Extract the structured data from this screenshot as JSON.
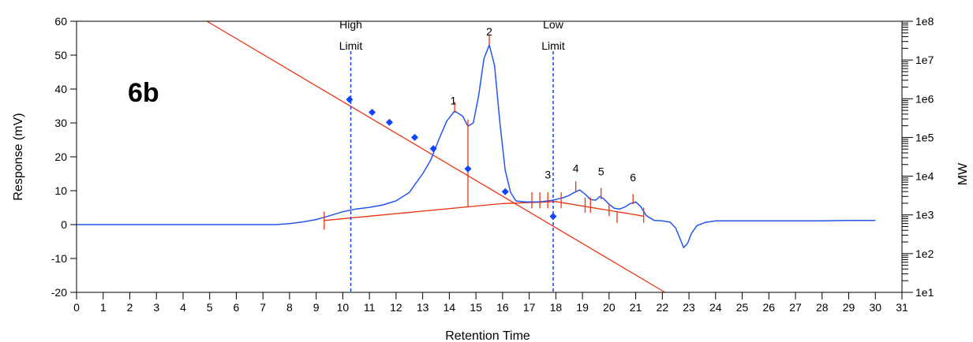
{
  "chart_data": {
    "type": "line",
    "panel_label": "6b",
    "title": "",
    "xlabel": "Retention Time",
    "ylabel_left": "Response (mV)",
    "ylabel_right": "MW",
    "xlim": [
      0,
      31
    ],
    "ylim_left": [
      -20,
      60
    ],
    "ylim_right_log10": [
      1,
      8
    ],
    "x_ticks": [
      0,
      1,
      2,
      3,
      4,
      5,
      6,
      7,
      8,
      9,
      10,
      11,
      12,
      13,
      14,
      15,
      16,
      17,
      18,
      19,
      20,
      21,
      22,
      23,
      24,
      25,
      26,
      27,
      28,
      29,
      30,
      31
    ],
    "y_ticks_left": [
      -20,
      -10,
      0,
      10,
      20,
      30,
      40,
      50,
      60
    ],
    "y_ticks_right": [
      {
        "label": "1e1",
        "log10": 1
      },
      {
        "label": "1e2",
        "log10": 2
      },
      {
        "label": "1e3",
        "log10": 3
      },
      {
        "label": "1e4",
        "log10": 4
      },
      {
        "label": "1e5",
        "log10": 5
      },
      {
        "label": "1e6",
        "log10": 6
      },
      {
        "label": "1e7",
        "log10": 7
      },
      {
        "label": "1e8",
        "log10": 8
      }
    ],
    "grid": false,
    "colors": {
      "signal": "#2255ee",
      "calibration": "#ee3311",
      "markers": "#1144ff",
      "limits": "#1144ee",
      "axes": "#000000"
    },
    "limits": [
      {
        "label_line1": "High",
        "label_line2": "Limit",
        "x": 10.3
      },
      {
        "label_line1": "Low",
        "label_line2": "Limit",
        "x": 17.9
      }
    ],
    "signal": {
      "x": [
        0,
        7.5,
        8.0,
        8.5,
        9.0,
        9.5,
        10.0,
        10.5,
        11.0,
        11.5,
        12.0,
        12.5,
        13.0,
        13.3,
        13.6,
        13.9,
        14.2,
        14.5,
        14.7,
        14.9,
        15.1,
        15.3,
        15.5,
        15.7,
        15.9,
        16.1,
        16.3,
        16.5,
        16.7,
        16.9,
        17.1,
        17.3,
        17.5,
        17.7,
        17.9,
        18.1,
        18.3,
        18.5,
        18.7,
        18.9,
        19.1,
        19.3,
        19.5,
        19.65,
        19.8,
        20.0,
        20.2,
        20.4,
        20.6,
        20.8,
        21.0,
        21.2,
        21.4,
        21.7,
        22.0,
        22.3,
        22.5,
        22.7,
        22.8,
        22.95,
        23.1,
        23.3,
        23.6,
        24,
        25,
        26,
        28,
        29,
        30
      ],
      "y": [
        0,
        0,
        0.3,
        0.8,
        1.5,
        2.6,
        3.8,
        4.6,
        5.1,
        5.8,
        7,
        9.5,
        15,
        19,
        25,
        30.5,
        33.5,
        32,
        29,
        30,
        38,
        49,
        53,
        47,
        30,
        16,
        9.5,
        7,
        6.8,
        6.7,
        6.7,
        6.7,
        6.8,
        7,
        7.2,
        7.6,
        8,
        8.6,
        9.5,
        10.2,
        9,
        7.4,
        7.2,
        8.3,
        7.6,
        6,
        4.8,
        4.6,
        5.2,
        6.2,
        6.7,
        5.2,
        2.6,
        1.2,
        1.1,
        0.7,
        -1,
        -4.8,
        -6.8,
        -5.5,
        -2.5,
        -0.3,
        0.6,
        1.1,
        1.1,
        1.1,
        1.1,
        1.2,
        1.2
      ]
    },
    "calibration_line": {
      "x": [
        4.9,
        22.1
      ],
      "log10_mw": [
        8,
        1
      ]
    },
    "calibration_points": {
      "x": [
        10.25,
        11.1,
        11.75,
        12.7,
        13.4,
        14.7,
        16.1,
        17.9
      ],
      "log10_mw": [
        5.98,
        5.65,
        5.39,
        5.0,
        4.71,
        4.19,
        3.6,
        2.96
      ]
    },
    "baseline": {
      "x": [
        9.3,
        16.0,
        18.0,
        21.3
      ],
      "y": [
        1.2,
        6.2,
        6.8,
        2.5
      ]
    },
    "peak_labels": [
      {
        "label": "1",
        "x": 14.15,
        "y": 35.5
      },
      {
        "label": "2",
        "x": 15.5,
        "y": 55.8
      },
      {
        "label": "3",
        "x": 17.7,
        "y": 13.6
      },
      {
        "label": "4",
        "x": 18.75,
        "y": 15.5
      },
      {
        "label": "5",
        "x": 19.7,
        "y": 14.5
      },
      {
        "label": "6",
        "x": 20.9,
        "y": 12.8
      }
    ],
    "peak_marks": [
      {
        "x": 9.3,
        "y1": -1.5,
        "y2": 3.8
      },
      {
        "x": 14.2,
        "y1": 33,
        "y2": 36.2
      },
      {
        "x": 15.5,
        "y1": 53,
        "y2": 56.2
      },
      {
        "x": 14.7,
        "y1": 5.2,
        "y2": 31
      },
      {
        "x": 17.1,
        "y1": 4.8,
        "y2": 9.5
      },
      {
        "x": 17.4,
        "y1": 4.8,
        "y2": 9.5
      },
      {
        "x": 17.7,
        "y1": 4.8,
        "y2": 9.5
      },
      {
        "x": 18.2,
        "y1": 4.8,
        "y2": 9.5
      },
      {
        "x": 18.75,
        "y1": 9.5,
        "y2": 12.8
      },
      {
        "x": 19.1,
        "y1": 3.5,
        "y2": 8.0
      },
      {
        "x": 19.3,
        "y1": 3.5,
        "y2": 8.0
      },
      {
        "x": 19.7,
        "y1": 7.5,
        "y2": 10.8
      },
      {
        "x": 20.0,
        "y1": 2.5,
        "y2": 6.0
      },
      {
        "x": 20.3,
        "y1": 0.5,
        "y2": 4.0
      },
      {
        "x": 20.9,
        "y1": 6.0,
        "y2": 9.0
      },
      {
        "x": 21.3,
        "y1": 0.5,
        "y2": 5.0
      }
    ]
  }
}
